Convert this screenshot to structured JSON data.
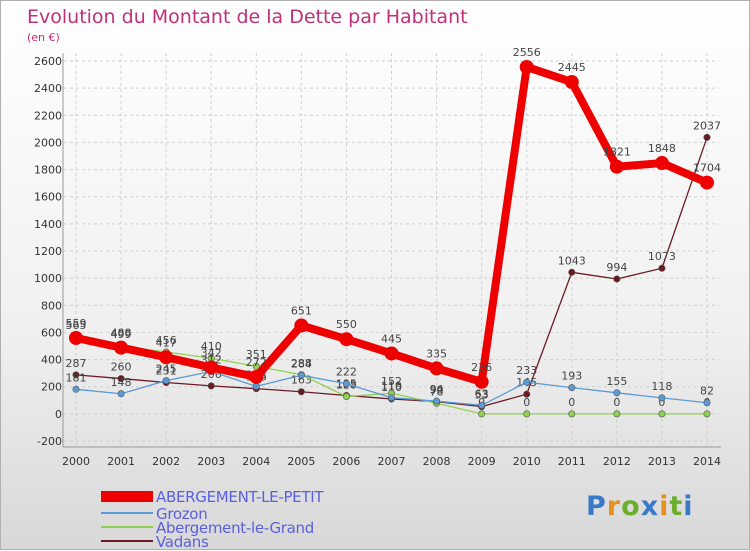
{
  "title": "Evolution du Montant de la Dette par Habitant",
  "unit": "(en €)",
  "logo": {
    "text": "Proxiti",
    "letter_colors": [
      "#3a78c8",
      "#e8901e",
      "#6aae2a",
      "#3a78c8",
      "#e8901e",
      "#6aae2a",
      "#3a78c8"
    ]
  },
  "chart_data": {
    "type": "line",
    "x": [
      "2000",
      "2001",
      "2002",
      "2003",
      "2004",
      "2005",
      "2006",
      "2007",
      "2008",
      "2009",
      "2010",
      "2011",
      "2012",
      "2013",
      "2014"
    ],
    "ylim": [
      -200,
      2600
    ],
    "yticks": [
      "-200",
      "0",
      "200",
      "400",
      "600",
      "800",
      "1000",
      "1200",
      "1400",
      "1600",
      "1800",
      "2000",
      "2200",
      "2400",
      "2600"
    ],
    "grid": true,
    "legend_position": "bottom-left",
    "series": [
      {
        "name": "Vadans",
        "color": "#6b1a22",
        "values": [
          287,
          260,
          231,
          206,
          186,
          163,
          135,
          110,
          90,
          53,
          145,
          1043,
          994,
          1073,
          2037
        ],
        "labels": [
          "287",
          "260",
          "231",
          "206",
          "186",
          "163",
          "135",
          "110",
          "90",
          "53",
          "145",
          "1043",
          "994",
          "1073",
          "2037"
        ]
      },
      {
        "name": "Abergement-le-Grand",
        "color": "#8ed14f",
        "values": [
          565,
          499,
          456,
          410,
          351,
          288,
          128,
          152,
          78,
          0,
          0,
          0,
          0,
          0,
          0
        ],
        "labels": [
          "565",
          "499",
          "456",
          "410",
          "351",
          "288",
          "128",
          "152",
          "78",
          "0",
          "0",
          "0",
          "0",
          "0",
          "0"
        ]
      },
      {
        "name": "Grozon",
        "color": "#5b9bd5",
        "values": [
          181,
          148,
          245,
          312,
          203,
          284,
          222,
          119,
          94,
          63,
          233,
          193,
          155,
          118,
          82
        ],
        "labels": [
          "181",
          "148",
          "245",
          "312",
          "203",
          "284",
          "222",
          "119",
          "94",
          "63",
          "233",
          "193",
          "155",
          "118",
          "82"
        ]
      },
      {
        "name": "ABERGEMENT-LE-PETIT",
        "color": "#ee0000",
        "values": [
          559,
          488,
          417,
          342,
          272,
          651,
          550,
          445,
          335,
          236,
          2556,
          2445,
          1821,
          1848,
          1704
        ],
        "labels": [
          "559",
          "488",
          "417",
          "342",
          "272",
          "651",
          "550",
          "445",
          "335",
          "236",
          "2556",
          "2445",
          "1821",
          "1848",
          "1704"
        ]
      }
    ],
    "legend": [
      {
        "name": "ABERGEMENT-LE-PETIT",
        "color": "#ee0000"
      },
      {
        "name": "Grozon",
        "color": "#5b9bd5"
      },
      {
        "name": "Abergement-le-Grand",
        "color": "#8ed14f"
      },
      {
        "name": "Vadans",
        "color": "#6b1a22"
      }
    ]
  }
}
